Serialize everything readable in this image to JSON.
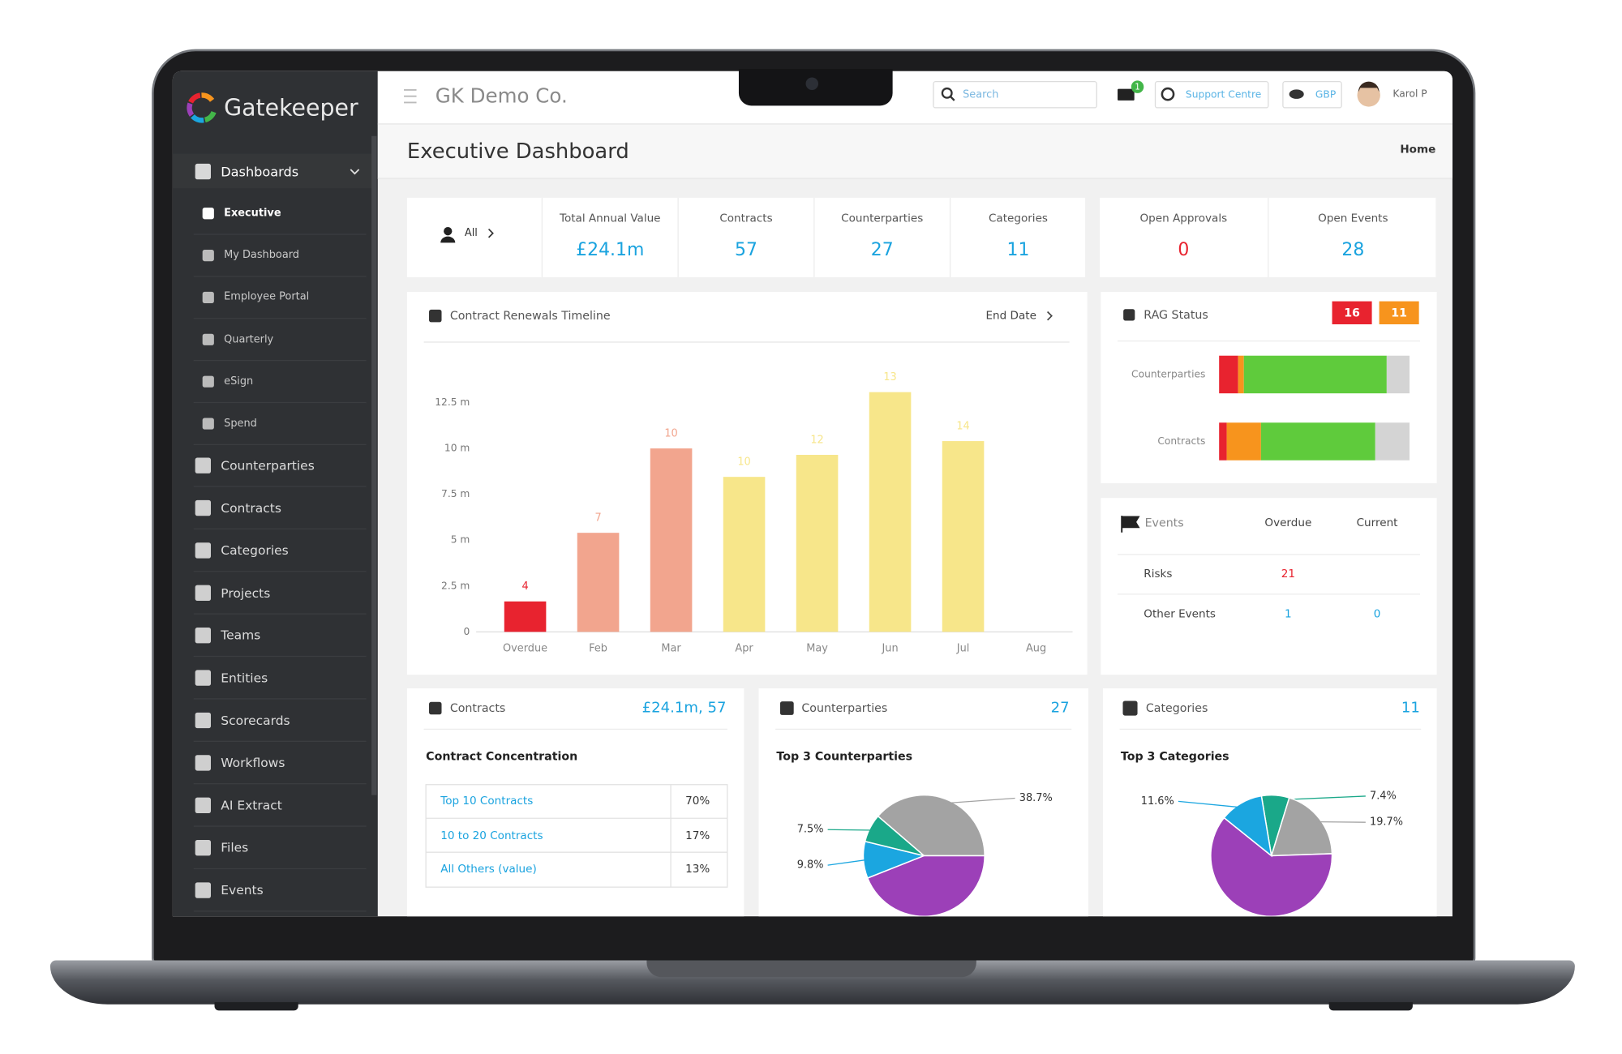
{
  "header": {
    "brand": "Gatekeeper",
    "company": "GK Demo Co.",
    "search_placeholder": "Search",
    "notification_count": 1,
    "support": "Support Centre",
    "currency": "GBP",
    "user": "Karol P"
  },
  "page": {
    "title": "Executive Dashboard",
    "breadcrumb": "Home"
  },
  "sidebar": {
    "group": "Dashboards",
    "sub_items": [
      "Executive",
      "My Dashboard",
      "Employee Portal",
      "Quarterly",
      "eSign",
      "Spend"
    ],
    "items": [
      "Counterparties",
      "Contracts",
      "Categories",
      "Projects",
      "Teams",
      "Entities",
      "Scorecards",
      "Workflows",
      "AI Extract",
      "Files",
      "Events"
    ]
  },
  "kpis": {
    "filter": "All",
    "tiles": [
      {
        "label": "Total Annual Value",
        "value": "£24.1m"
      },
      {
        "label": "Contracts",
        "value": 57
      },
      {
        "label": "Counterparties",
        "value": 27
      },
      {
        "label": "Categories",
        "value": 11
      }
    ],
    "alerts": [
      {
        "label": "Open Approvals",
        "value": 0
      },
      {
        "label": "Open Events",
        "value": 28
      }
    ]
  },
  "events": {
    "title": "Events",
    "columns": [
      "Overdue",
      "Current"
    ],
    "rows": [
      {
        "label": "Risks",
        "overdue": 21
      },
      {
        "label": "Other Events",
        "overdue": 1,
        "current": 0
      }
    ]
  },
  "contracts_panel": {
    "title": "Contracts",
    "summary": "£24.1m, 57",
    "subtitle": "Contract Concentration",
    "rows": [
      [
        "Top 10 Contracts",
        "70%"
      ],
      [
        "10 to 20 Contracts",
        "17%"
      ],
      [
        "All Others (value)",
        "13%"
      ]
    ]
  },
  "counterparties_panel": {
    "title": "Counterparties",
    "count": 27
  },
  "categories_panel": {
    "title": "Categories",
    "count": 11
  },
  "chart_data": [
    {
      "type": "bar",
      "title": "Contract Renewals Timeline",
      "sort_label": "End Date",
      "categories": [
        "Overdue",
        "Feb",
        "Mar",
        "Apr",
        "May",
        "Jun",
        "Jul",
        "Aug"
      ],
      "values": [
        1.66,
        5.4,
        10.0,
        8.45,
        9.65,
        13.07,
        10.4,
        null
      ],
      "counts": [
        4,
        7,
        10,
        10,
        12,
        13,
        14,
        null
      ],
      "colors": [
        "#e8232f",
        "#f2a58e",
        "#f2a58e",
        "#f7e68a",
        "#f7e68a",
        "#f7e68a",
        "#f7e68a",
        "#f7e68a"
      ],
      "ylim": [
        0,
        15
      ],
      "yticks": [
        0,
        {
          "value": 2.5,
          "label": "2.5 m"
        },
        {
          "value": 5,
          "label": "5 m"
        },
        {
          "value": 7.5,
          "label": "7.5 m"
        },
        {
          "value": 10,
          "label": "10 m"
        },
        {
          "value": 12.5,
          "label": "12.5 m"
        }
      ]
    },
    {
      "type": "stacked-bar-h",
      "title": "RAG Status",
      "badges": [
        {
          "value": 16,
          "color": "#e8232f"
        },
        {
          "value": 11,
          "color": "#f7941d"
        }
      ],
      "categories": [
        "Counterparties",
        "Contracts"
      ],
      "xlim": [
        0,
        100
      ],
      "series": [
        {
          "color": "#e8232f",
          "values": [
            10,
            4
          ]
        },
        {
          "color": "#f7941d",
          "values": [
            3,
            18
          ]
        },
        {
          "color": "#5fcb3c",
          "values": [
            75,
            60
          ]
        },
        {
          "color": "#d4d4d4",
          "values": [
            12,
            18
          ]
        }
      ]
    },
    {
      "type": "pie",
      "title": "Top 3 Counterparties",
      "values": [
        38.7,
        44.0,
        9.8,
        7.5
      ],
      "value_labels": [
        "38.7%",
        null,
        "9.8%",
        "7.5%"
      ],
      "colors": [
        "#a3a3a3",
        "#9c40b8",
        "#1ba6e0",
        "#1aa889"
      ]
    },
    {
      "type": "pie",
      "title": "Top 3 Categories",
      "values": [
        7.4,
        19.7,
        61.3,
        11.6
      ],
      "value_labels": [
        "7.4%",
        "19.7%",
        null,
        "11.6%"
      ],
      "colors": [
        "#1aa889",
        "#a3a3a3",
        "#9c40b8",
        "#1ba6e0"
      ]
    }
  ]
}
